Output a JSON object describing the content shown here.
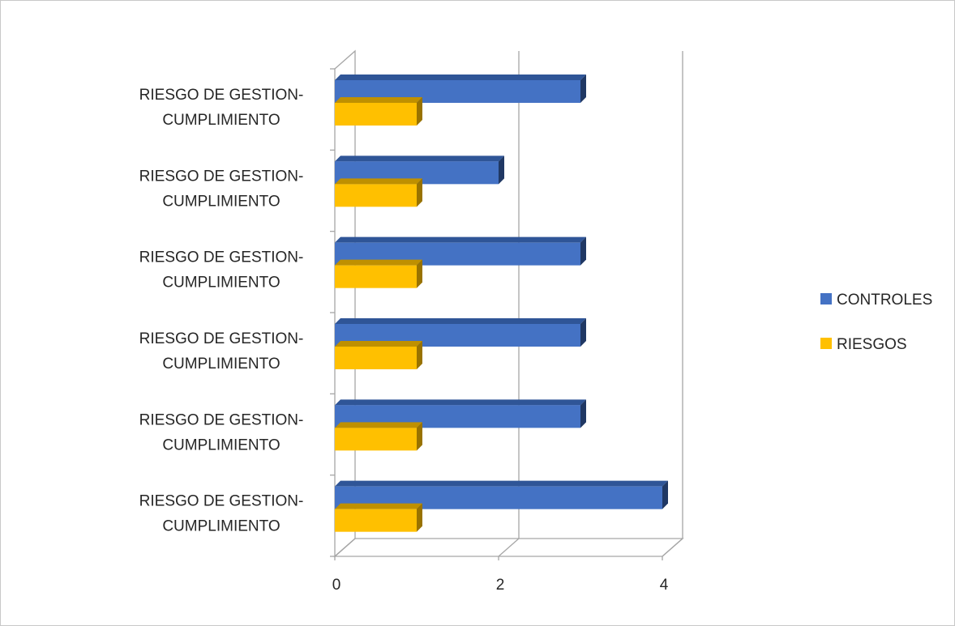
{
  "chart_data": {
    "type": "bar",
    "orientation": "horizontal",
    "three_d": true,
    "categories": [
      [
        "RIESGO DE GESTION-",
        "CUMPLIMIENTO"
      ],
      [
        "RIESGO DE GESTION-",
        "CUMPLIMIENTO"
      ],
      [
        "RIESGO DE GESTION-",
        "CUMPLIMIENTO"
      ],
      [
        "RIESGO DE GESTION-",
        "CUMPLIMIENTO"
      ],
      [
        "RIESGO DE GESTION-",
        "CUMPLIMIENTO"
      ],
      [
        "RIESGO DE GESTION-",
        "CUMPLIMIENTO"
      ]
    ],
    "series": [
      {
        "name": "CONTROLES",
        "color": "#4472C4",
        "top_color": "#2F5597",
        "side_color": "#203864",
        "values": [
          3,
          2,
          3,
          3,
          3,
          4
        ]
      },
      {
        "name": "RIESGOS",
        "color": "#FFC000",
        "top_color": "#BF9000",
        "side_color": "#997300",
        "values": [
          1,
          1,
          1,
          1,
          1,
          1
        ]
      }
    ],
    "x_ticks": [
      "0",
      "2",
      "4"
    ],
    "xlim": [
      0,
      4
    ],
    "grid": true,
    "legend": {
      "position": "right"
    },
    "title": "",
    "xlabel": "",
    "ylabel": ""
  }
}
